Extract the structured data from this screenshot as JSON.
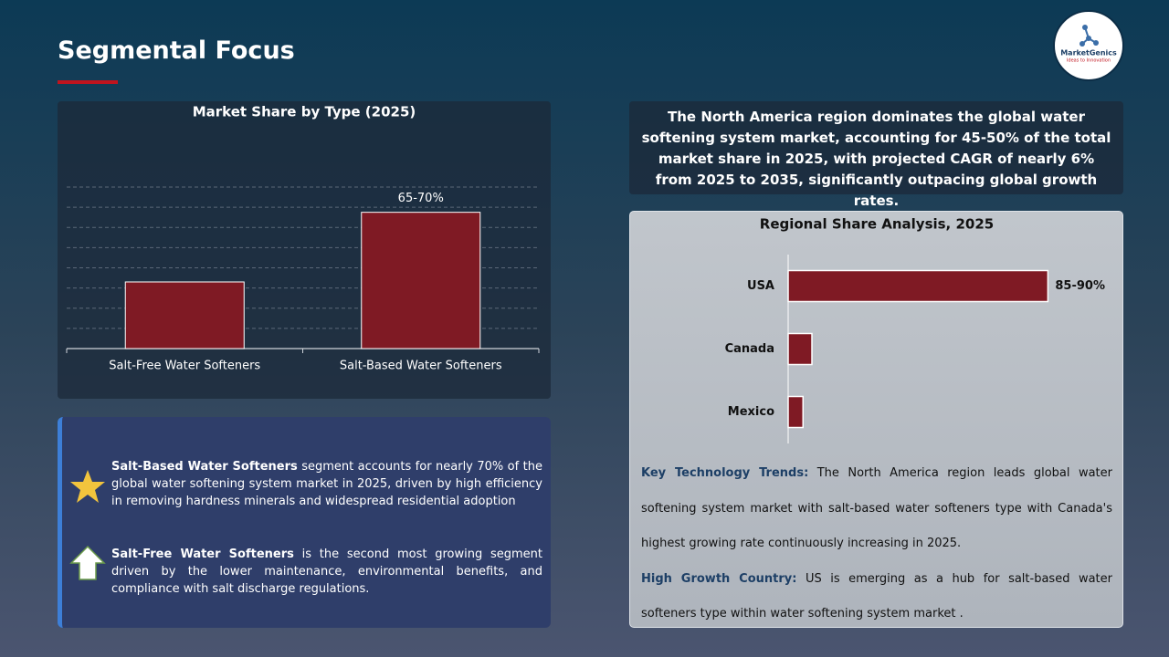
{
  "header": {
    "title": "Segmental Focus"
  },
  "logo": {
    "name": "MarketGenics",
    "tagline": "Ideas to Innovation"
  },
  "chart_data": [
    {
      "type": "bar",
      "title": "Market Share by Type (2025)",
      "categories": [
        "Salt-Free Water Softeners",
        "Salt-Based Water Softeners"
      ],
      "values": [
        33,
        67.5
      ],
      "value_labels": [
        null,
        "65-70%"
      ],
      "color": "#7f1a24",
      "ylim": [
        0,
        80
      ],
      "yticks": [
        0,
        10,
        20,
        30,
        40,
        50,
        60,
        70,
        80
      ],
      "grid": true
    },
    {
      "type": "bar",
      "orientation": "horizontal",
      "title": "Regional Share Analysis, 2025",
      "categories": [
        "USA",
        "Canada",
        "Mexico"
      ],
      "values": [
        87.5,
        8,
        5
      ],
      "value_labels": [
        "85-90%",
        null,
        null
      ],
      "color": "#7f1a24",
      "xlim": [
        0,
        100
      ],
      "grid": false
    }
  ],
  "highlights": [
    {
      "lead": "Salt-Based Water Softeners",
      "text": " segment accounts for nearly 70% of the global water softening system  market in 2025, driven by high efficiency in removing hardness minerals and widespread residential adoption"
    },
    {
      "lead": "Salt-Free Water Softeners",
      "text": " is the second most growing segment driven by the lower maintenance, environmental benefits, and compliance with salt discharge regulations."
    }
  ],
  "summary": "The North America region dominates the global water softening system  market, accounting for 45-50% of the total market share in 2025, with projected CAGR of nearly 6% from 2025 to 2035, significantly outpacing global growth rates.",
  "notes": [
    {
      "label": "Key Technology Trends:",
      "text": " The North America region leads global water softening system  market with salt-based water softeners type with Canada's highest growing rate continuously increasing in 2025."
    },
    {
      "label": "High Growth Country:",
      "text": " US is emerging as a hub for salt-based water softeners type within water softening system  market ."
    }
  ]
}
